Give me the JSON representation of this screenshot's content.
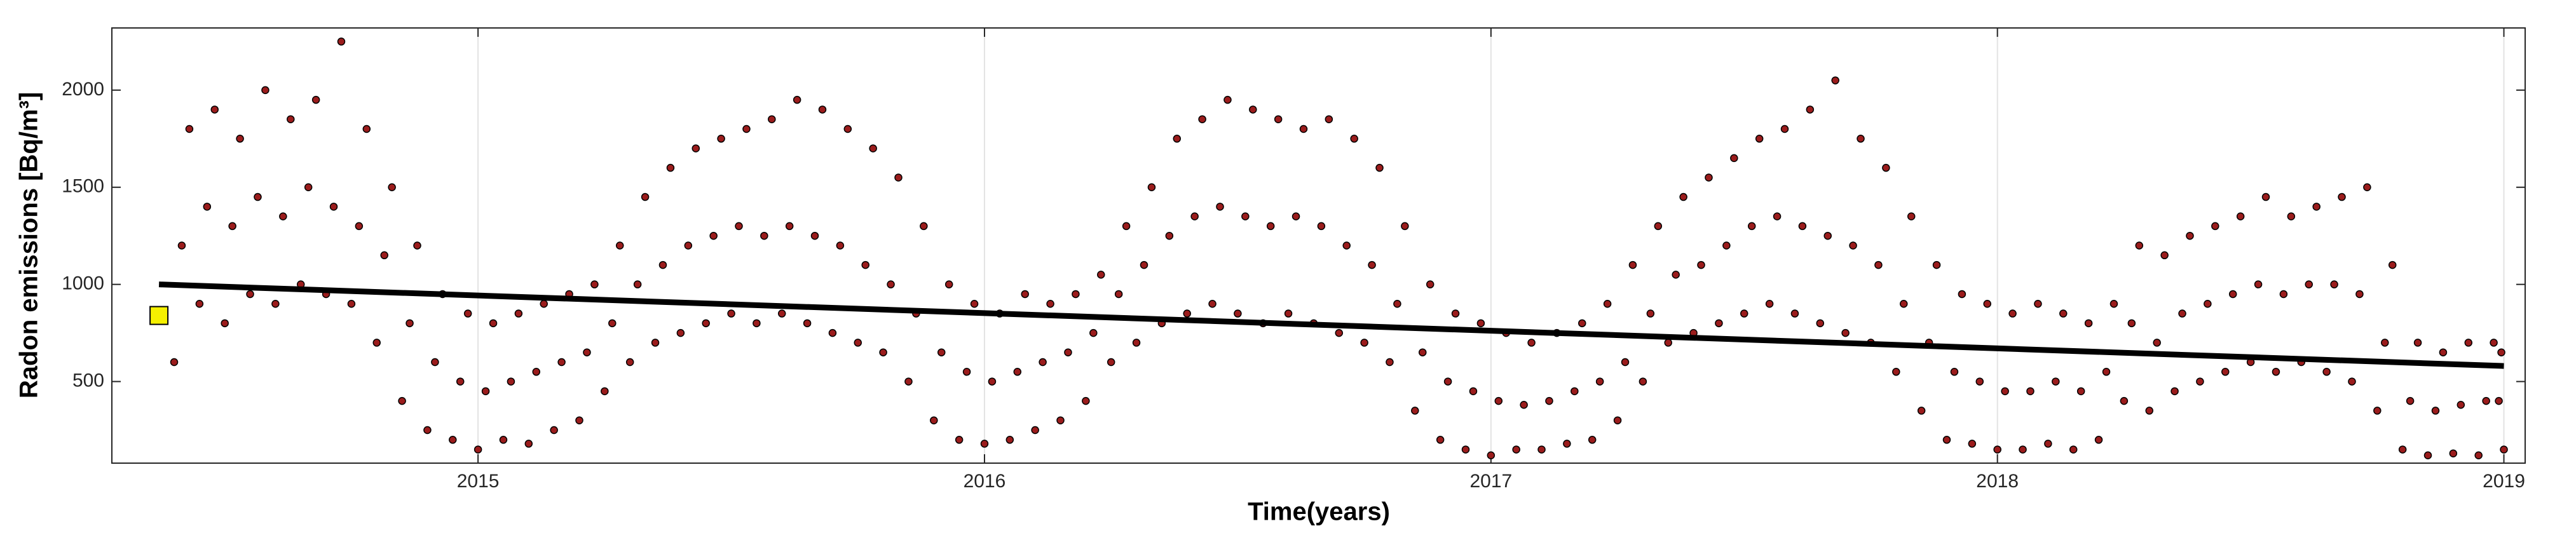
{
  "chart_data": {
    "type": "scatter",
    "y_label": "Radon emissions [Bq/m³]",
    "x_label": "Time(years)",
    "xlim": [
      2014.277,
      2019.042
    ],
    "xticks": [
      2015,
      2016,
      2017,
      2018,
      2019
    ],
    "ylim": [
      80,
      2320
    ],
    "yticks": [
      500,
      1000,
      1500,
      2000
    ],
    "grid": "x",
    "series": [
      {
        "mode": "markers",
        "color": "#9b1c1c",
        "x": [
          2014.4,
          2014.415,
          2014.43,
          2014.45,
          2014.465,
          2014.48,
          2014.5,
          2014.515,
          2014.53,
          2014.55,
          2014.565,
          2014.58,
          2014.6,
          2014.615,
          2014.63,
          2014.65,
          2014.665,
          2014.68,
          2014.7,
          2014.715,
          2014.73,
          2014.75,
          2014.765,
          2014.78,
          2014.8,
          2014.815,
          2014.83,
          2014.85,
          2014.865,
          2014.88,
          2014.9,
          2014.915,
          2014.93,
          2014.95,
          2014.965,
          2014.98,
          2015.0,
          2015.015,
          2015.03,
          2015.05,
          2015.065,
          2015.08,
          2015.1,
          2015.115,
          2015.13,
          2015.15,
          2015.165,
          2015.18,
          2015.2,
          2015.215,
          2015.23,
          2015.25,
          2015.265,
          2015.28,
          2015.3,
          2015.315,
          2015.33,
          2015.35,
          2015.365,
          2015.38,
          2015.4,
          2015.415,
          2015.43,
          2015.45,
          2015.465,
          2015.48,
          2015.5,
          2015.515,
          2015.53,
          2015.55,
          2015.565,
          2015.58,
          2015.6,
          2015.615,
          2015.63,
          2015.65,
          2015.665,
          2015.68,
          2015.7,
          2015.715,
          2015.73,
          2015.75,
          2015.765,
          2015.78,
          2015.8,
          2015.815,
          2015.83,
          2015.85,
          2015.865,
          2015.88,
          2015.9,
          2015.915,
          2015.93,
          2015.95,
          2015.965,
          2015.98,
          2016.0,
          2016.015,
          2016.03,
          2016.05,
          2016.065,
          2016.08,
          2016.1,
          2016.115,
          2016.13,
          2016.15,
          2016.165,
          2016.18,
          2016.2,
          2016.215,
          2016.23,
          2016.25,
          2016.265,
          2016.28,
          2016.3,
          2016.315,
          2016.33,
          2016.35,
          2016.365,
          2016.38,
          2016.4,
          2016.415,
          2016.43,
          2016.45,
          2016.465,
          2016.48,
          2016.5,
          2016.515,
          2016.53,
          2016.55,
          2016.565,
          2016.58,
          2016.6,
          2016.615,
          2016.63,
          2016.65,
          2016.665,
          2016.68,
          2016.7,
          2016.715,
          2016.73,
          2016.75,
          2016.765,
          2016.78,
          2016.8,
          2016.815,
          2016.83,
          2016.85,
          2016.865,
          2016.88,
          2016.9,
          2016.915,
          2016.93,
          2016.95,
          2016.965,
          2016.98,
          2017.0,
          2017.015,
          2017.03,
          2017.05,
          2017.065,
          2017.08,
          2017.1,
          2017.115,
          2017.13,
          2017.15,
          2017.165,
          2017.18,
          2017.2,
          2017.215,
          2017.23,
          2017.25,
          2017.265,
          2017.28,
          2017.3,
          2017.315,
          2017.33,
          2017.35,
          2017.365,
          2017.38,
          2017.4,
          2017.415,
          2017.43,
          2017.45,
          2017.465,
          2017.48,
          2017.5,
          2017.515,
          2017.53,
          2017.55,
          2017.565,
          2017.58,
          2017.6,
          2017.615,
          2017.63,
          2017.65,
          2017.665,
          2017.68,
          2017.7,
          2017.715,
          2017.73,
          2017.75,
          2017.765,
          2017.78,
          2017.8,
          2017.815,
          2017.83,
          2017.85,
          2017.865,
          2017.88,
          2017.9,
          2017.915,
          2017.93,
          2017.95,
          2017.965,
          2017.98,
          2018.0,
          2018.015,
          2018.03,
          2018.05,
          2018.065,
          2018.08,
          2018.1,
          2018.115,
          2018.13,
          2018.15,
          2018.165,
          2018.18,
          2018.2,
          2018.215,
          2018.23,
          2018.25,
          2018.265,
          2018.28,
          2018.3,
          2018.315,
          2018.33,
          2018.35,
          2018.365,
          2018.38,
          2018.4,
          2018.415,
          2018.43,
          2018.45,
          2018.465,
          2018.48,
          2018.5,
          2018.515,
          2018.53,
          2018.55,
          2018.565,
          2018.58,
          2018.6,
          2018.615,
          2018.63,
          2018.65,
          2018.665,
          2018.68,
          2018.7,
          2018.715,
          2018.73,
          2018.75,
          2018.765,
          2018.78,
          2018.8,
          2018.815,
          2018.83,
          2018.85,
          2018.865,
          2018.88,
          2018.9,
          2018.915,
          2018.93,
          2018.95,
          2018.965,
          2018.98,
          2019.0,
          2018.99,
          2018.995
        ],
        "values": [
          600,
          1200,
          1800,
          900,
          1400,
          1900,
          800,
          1300,
          1750,
          950,
          1450,
          2000,
          900,
          1350,
          1850,
          1000,
          1500,
          1950,
          950,
          1400,
          2250,
          900,
          1300,
          1800,
          700,
          1150,
          1500,
          400,
          800,
          1200,
          250,
          600,
          950,
          200,
          500,
          850,
          150,
          450,
          800,
          200,
          500,
          850,
          180,
          550,
          900,
          250,
          600,
          950,
          300,
          650,
          1000,
          450,
          800,
          1200,
          600,
          1000,
          1450,
          700,
          1100,
          1600,
          750,
          1200,
          1700,
          800,
          1250,
          1750,
          850,
          1300,
          1800,
          800,
          1250,
          1850,
          850,
          1300,
          1950,
          800,
          1250,
          1900,
          750,
          1200,
          1800,
          700,
          1100,
          1700,
          650,
          1000,
          1550,
          500,
          850,
          1300,
          300,
          650,
          1000,
          200,
          550,
          900,
          180,
          500,
          850,
          200,
          550,
          950,
          250,
          600,
          900,
          300,
          650,
          950,
          400,
          750,
          1050,
          600,
          950,
          1300,
          700,
          1100,
          1500,
          800,
          1250,
          1750,
          850,
          1350,
          1850,
          900,
          1400,
          1950,
          850,
          1350,
          1900,
          800,
          1300,
          1850,
          850,
          1350,
          1800,
          800,
          1300,
          1850,
          750,
          1200,
          1750,
          700,
          1100,
          1600,
          600,
          900,
          1300,
          350,
          650,
          1000,
          200,
          500,
          850,
          150,
          450,
          800,
          120,
          400,
          750,
          150,
          380,
          700,
          150,
          400,
          750,
          180,
          450,
          800,
          200,
          500,
          900,
          300,
          600,
          1100,
          500,
          850,
          1300,
          700,
          1050,
          1450,
          750,
          1100,
          1550,
          800,
          1200,
          1650,
          850,
          1300,
          1750,
          900,
          1350,
          1800,
          850,
          1300,
          1900,
          800,
          1250,
          2050,
          750,
          1200,
          1750,
          700,
          1100,
          1600,
          550,
          900,
          1350,
          350,
          700,
          1100,
          200,
          550,
          950,
          180,
          500,
          900,
          150,
          450,
          850,
          150,
          450,
          900,
          180,
          500,
          850,
          150,
          450,
          800,
          200,
          550,
          900,
          400,
          800,
          1200,
          350,
          700,
          1150,
          450,
          850,
          1250,
          500,
          900,
          1300,
          550,
          950,
          1350,
          600,
          1000,
          1450,
          550,
          950,
          1350,
          600,
          1000,
          1400,
          550,
          1000,
          1450,
          500,
          950,
          1500,
          350,
          700,
          1100,
          150,
          400,
          700,
          120,
          350,
          650,
          130,
          380,
          700,
          120,
          400,
          700,
          150,
          400,
          650
        ]
      },
      {
        "mode": "line",
        "color": "#000000",
        "x": [
          2014.37,
          2019.0
        ],
        "values": [
          1000,
          580
        ]
      },
      {
        "mode": "square",
        "color": "#f5f000",
        "x": [
          2014.37
        ],
        "values": [
          840
        ]
      }
    ]
  }
}
